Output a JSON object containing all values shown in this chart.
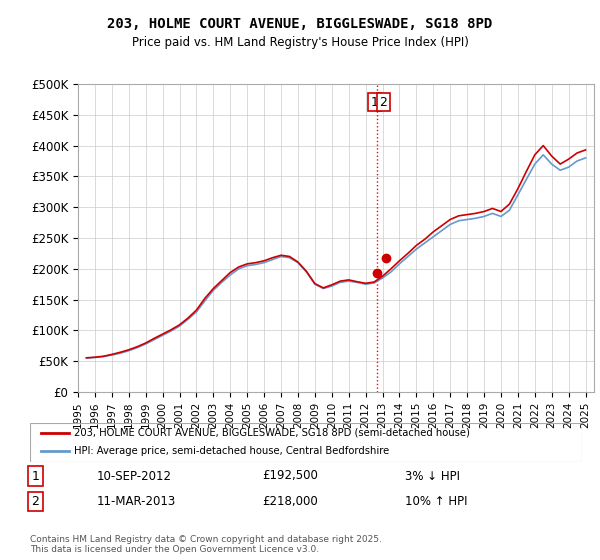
{
  "title": "203, HOLME COURT AVENUE, BIGGLESWADE, SG18 8PD",
  "subtitle": "Price paid vs. HM Land Registry's House Price Index (HPI)",
  "ylabel_ticks": [
    "£0",
    "£50K",
    "£100K",
    "£150K",
    "£200K",
    "£250K",
    "£300K",
    "£350K",
    "£400K",
    "£450K",
    "£500K"
  ],
  "ytick_vals": [
    0,
    50000,
    100000,
    150000,
    200000,
    250000,
    300000,
    350000,
    400000,
    450000,
    500000
  ],
  "ylim": [
    0,
    500000
  ],
  "xlim_start": 1995,
  "xlim_end": 2025.5,
  "vline_x": 2012.7,
  "marker1_x": 2012.7,
  "marker1_y": 192500,
  "marker2_x": 2013.2,
  "marker2_y": 218000,
  "sale1_label": "1",
  "sale2_label": "2",
  "sale1_date": "10-SEP-2012",
  "sale1_price": "£192,500",
  "sale1_note": "3% ↓ HPI",
  "sale2_date": "11-MAR-2013",
  "sale2_price": "£218,000",
  "sale2_note": "10% ↑ HPI",
  "legend1_label": "203, HOLME COURT AVENUE, BIGGLESWADE, SG18 8PD (semi-detached house)",
  "legend2_label": "HPI: Average price, semi-detached house, Central Bedfordshire",
  "footer": "Contains HM Land Registry data © Crown copyright and database right 2025.\nThis data is licensed under the Open Government Licence v3.0.",
  "line_red_color": "#cc0000",
  "line_blue_color": "#6699cc",
  "background_color": "#ffffff",
  "hpi_data": {
    "years": [
      1995.5,
      1996.0,
      1996.5,
      1997.0,
      1997.5,
      1998.0,
      1998.5,
      1999.0,
      1999.5,
      2000.0,
      2000.5,
      2001.0,
      2001.5,
      2002.0,
      2002.5,
      2003.0,
      2003.5,
      2004.0,
      2004.5,
      2005.0,
      2005.5,
      2006.0,
      2006.5,
      2007.0,
      2007.5,
      2008.0,
      2008.5,
      2009.0,
      2009.5,
      2010.0,
      2010.5,
      2011.0,
      2011.5,
      2012.0,
      2012.5,
      2013.0,
      2013.5,
      2014.0,
      2014.5,
      2015.0,
      2015.5,
      2016.0,
      2016.5,
      2017.0,
      2017.5,
      2018.0,
      2018.5,
      2019.0,
      2019.5,
      2020.0,
      2020.5,
      2021.0,
      2021.5,
      2022.0,
      2022.5,
      2023.0,
      2023.5,
      2024.0,
      2024.5,
      2025.0
    ],
    "hpi_vals": [
      55000,
      56000,
      57500,
      60000,
      63000,
      67000,
      72000,
      78000,
      85000,
      92000,
      99000,
      107000,
      118000,
      130000,
      148000,
      165000,
      178000,
      190000,
      200000,
      205000,
      207000,
      210000,
      215000,
      220000,
      218000,
      210000,
      195000,
      175000,
      168000,
      172000,
      178000,
      180000,
      178000,
      175000,
      177000,
      185000,
      195000,
      208000,
      220000,
      232000,
      242000,
      252000,
      262000,
      272000,
      278000,
      280000,
      282000,
      285000,
      290000,
      285000,
      295000,
      320000,
      345000,
      370000,
      385000,
      370000,
      360000,
      365000,
      375000,
      380000
    ],
    "price_vals": [
      55500,
      56500,
      58000,
      61000,
      64500,
      68500,
      73500,
      79500,
      87000,
      94000,
      101000,
      109000,
      120000,
      133000,
      152000,
      168000,
      181000,
      194000,
      203000,
      208000,
      210000,
      213000,
      218000,
      222000,
      220000,
      211000,
      196000,
      176000,
      169000,
      174000,
      180000,
      182000,
      179000,
      176500,
      178500,
      188000,
      200000,
      213000,
      225000,
      238000,
      248000,
      260000,
      270000,
      280000,
      286000,
      288000,
      290000,
      293000,
      298000,
      293000,
      305000,
      330000,
      358000,
      385000,
      400000,
      383000,
      370000,
      378000,
      388000,
      393000
    ]
  }
}
